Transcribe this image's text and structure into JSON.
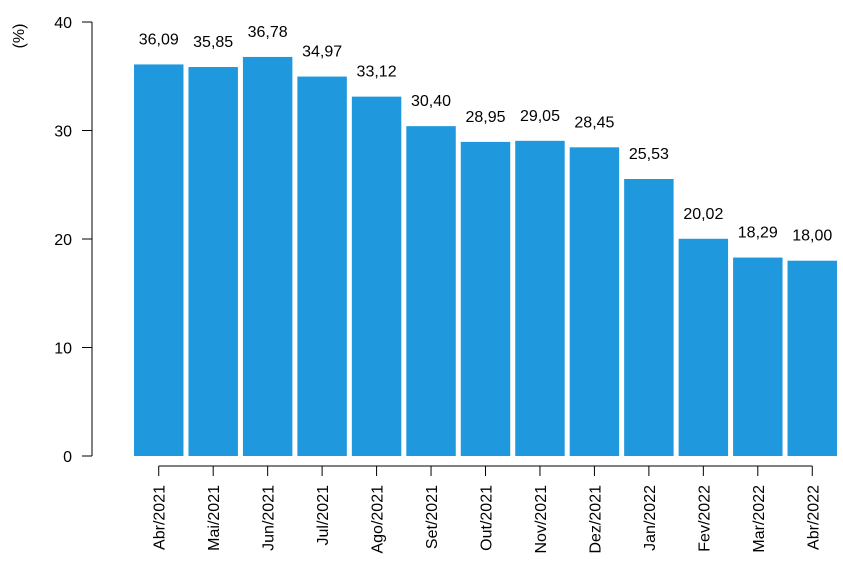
{
  "chart_data": {
    "type": "bar",
    "title": "",
    "xlabel": "",
    "ylabel": "(%)",
    "ylim": [
      0,
      40
    ],
    "yticks": [
      0,
      10,
      20,
      30,
      40
    ],
    "grid": false,
    "bar_color": "#2098dd",
    "categories": [
      "Abr/2021",
      "Mai/2021",
      "Jun/2021",
      "Jul/2021",
      "Ago/2021",
      "Set/2021",
      "Out/2021",
      "Nov/2021",
      "Dez/2021",
      "Jan/2022",
      "Fev/2022",
      "Mar/2022",
      "Abr/2022"
    ],
    "values": [
      36.09,
      35.85,
      36.78,
      34.97,
      33.12,
      30.4,
      28.95,
      29.05,
      28.45,
      25.53,
      20.02,
      18.29,
      18.0
    ],
    "value_labels": [
      "36,09",
      "35,85",
      "36,78",
      "34,97",
      "33,12",
      "30,40",
      "28,95",
      "29,05",
      "28,45",
      "25,53",
      "20,02",
      "18,29",
      "18,00"
    ]
  }
}
